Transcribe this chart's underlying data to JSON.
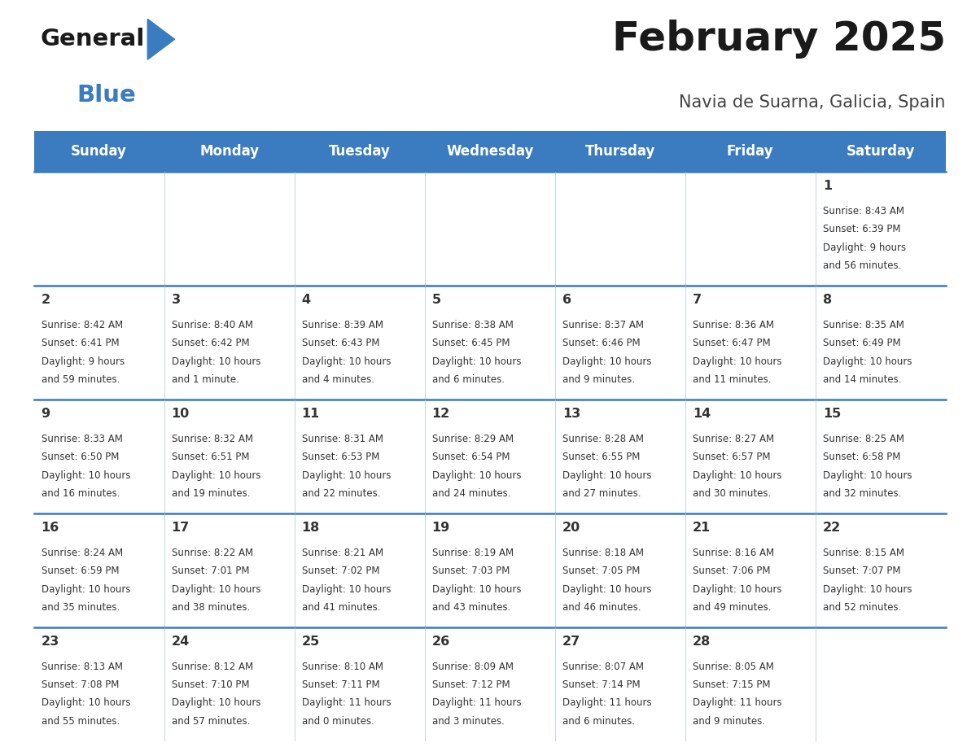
{
  "title": "February 2025",
  "subtitle": "Navia de Suarna, Galicia, Spain",
  "days_of_week": [
    "Sunday",
    "Monday",
    "Tuesday",
    "Wednesday",
    "Thursday",
    "Friday",
    "Saturday"
  ],
  "header_bg": "#3b7bbf",
  "header_text": "#ffffff",
  "row_bg_light": "#f2f5f8",
  "row_bg_white": "#ffffff",
  "divider_color": "#3b7bbf",
  "cell_line_color": "#b0c4d8",
  "text_color": "#333333",
  "title_color": "#1a1a1a",
  "subtitle_color": "#444444",
  "logo_general_color": "#1a1a1a",
  "logo_blue_color": "#3b7bbf",
  "logo_triangle_color": "#3b7bbf",
  "calendar_data": [
    [
      null,
      null,
      null,
      null,
      null,
      null,
      {
        "day": "1",
        "sunrise": "8:43 AM",
        "sunset": "6:39 PM",
        "daylight_line1": "9 hours",
        "daylight_line2": "and 56 minutes."
      }
    ],
    [
      {
        "day": "2",
        "sunrise": "8:42 AM",
        "sunset": "6:41 PM",
        "daylight_line1": "9 hours",
        "daylight_line2": "and 59 minutes."
      },
      {
        "day": "3",
        "sunrise": "8:40 AM",
        "sunset": "6:42 PM",
        "daylight_line1": "10 hours",
        "daylight_line2": "and 1 minute."
      },
      {
        "day": "4",
        "sunrise": "8:39 AM",
        "sunset": "6:43 PM",
        "daylight_line1": "10 hours",
        "daylight_line2": "and 4 minutes."
      },
      {
        "day": "5",
        "sunrise": "8:38 AM",
        "sunset": "6:45 PM",
        "daylight_line1": "10 hours",
        "daylight_line2": "and 6 minutes."
      },
      {
        "day": "6",
        "sunrise": "8:37 AM",
        "sunset": "6:46 PM",
        "daylight_line1": "10 hours",
        "daylight_line2": "and 9 minutes."
      },
      {
        "day": "7",
        "sunrise": "8:36 AM",
        "sunset": "6:47 PM",
        "daylight_line1": "10 hours",
        "daylight_line2": "and 11 minutes."
      },
      {
        "day": "8",
        "sunrise": "8:35 AM",
        "sunset": "6:49 PM",
        "daylight_line1": "10 hours",
        "daylight_line2": "and 14 minutes."
      }
    ],
    [
      {
        "day": "9",
        "sunrise": "8:33 AM",
        "sunset": "6:50 PM",
        "daylight_line1": "10 hours",
        "daylight_line2": "and 16 minutes."
      },
      {
        "day": "10",
        "sunrise": "8:32 AM",
        "sunset": "6:51 PM",
        "daylight_line1": "10 hours",
        "daylight_line2": "and 19 minutes."
      },
      {
        "day": "11",
        "sunrise": "8:31 AM",
        "sunset": "6:53 PM",
        "daylight_line1": "10 hours",
        "daylight_line2": "and 22 minutes."
      },
      {
        "day": "12",
        "sunrise": "8:29 AM",
        "sunset": "6:54 PM",
        "daylight_line1": "10 hours",
        "daylight_line2": "and 24 minutes."
      },
      {
        "day": "13",
        "sunrise": "8:28 AM",
        "sunset": "6:55 PM",
        "daylight_line1": "10 hours",
        "daylight_line2": "and 27 minutes."
      },
      {
        "day": "14",
        "sunrise": "8:27 AM",
        "sunset": "6:57 PM",
        "daylight_line1": "10 hours",
        "daylight_line2": "and 30 minutes."
      },
      {
        "day": "15",
        "sunrise": "8:25 AM",
        "sunset": "6:58 PM",
        "daylight_line1": "10 hours",
        "daylight_line2": "and 32 minutes."
      }
    ],
    [
      {
        "day": "16",
        "sunrise": "8:24 AM",
        "sunset": "6:59 PM",
        "daylight_line1": "10 hours",
        "daylight_line2": "and 35 minutes."
      },
      {
        "day": "17",
        "sunrise": "8:22 AM",
        "sunset": "7:01 PM",
        "daylight_line1": "10 hours",
        "daylight_line2": "and 38 minutes."
      },
      {
        "day": "18",
        "sunrise": "8:21 AM",
        "sunset": "7:02 PM",
        "daylight_line1": "10 hours",
        "daylight_line2": "and 41 minutes."
      },
      {
        "day": "19",
        "sunrise": "8:19 AM",
        "sunset": "7:03 PM",
        "daylight_line1": "10 hours",
        "daylight_line2": "and 43 minutes."
      },
      {
        "day": "20",
        "sunrise": "8:18 AM",
        "sunset": "7:05 PM",
        "daylight_line1": "10 hours",
        "daylight_line2": "and 46 minutes."
      },
      {
        "day": "21",
        "sunrise": "8:16 AM",
        "sunset": "7:06 PM",
        "daylight_line1": "10 hours",
        "daylight_line2": "and 49 minutes."
      },
      {
        "day": "22",
        "sunrise": "8:15 AM",
        "sunset": "7:07 PM",
        "daylight_line1": "10 hours",
        "daylight_line2": "and 52 minutes."
      }
    ],
    [
      {
        "day": "23",
        "sunrise": "8:13 AM",
        "sunset": "7:08 PM",
        "daylight_line1": "10 hours",
        "daylight_line2": "and 55 minutes."
      },
      {
        "day": "24",
        "sunrise": "8:12 AM",
        "sunset": "7:10 PM",
        "daylight_line1": "10 hours",
        "daylight_line2": "and 57 minutes."
      },
      {
        "day": "25",
        "sunrise": "8:10 AM",
        "sunset": "7:11 PM",
        "daylight_line1": "11 hours",
        "daylight_line2": "and 0 minutes."
      },
      {
        "day": "26",
        "sunrise": "8:09 AM",
        "sunset": "7:12 PM",
        "daylight_line1": "11 hours",
        "daylight_line2": "and 3 minutes."
      },
      {
        "day": "27",
        "sunrise": "8:07 AM",
        "sunset": "7:14 PM",
        "daylight_line1": "11 hours",
        "daylight_line2": "and 6 minutes."
      },
      {
        "day": "28",
        "sunrise": "8:05 AM",
        "sunset": "7:15 PM",
        "daylight_line1": "11 hours",
        "daylight_line2": "and 9 minutes."
      },
      null
    ]
  ]
}
